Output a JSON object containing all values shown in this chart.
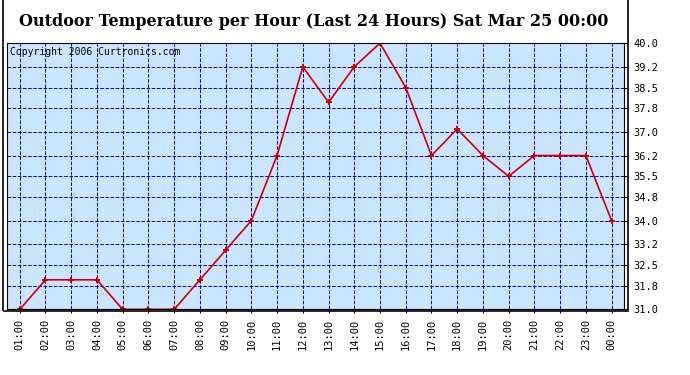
{
  "title": "Outdoor Temperature per Hour (Last 24 Hours) Sat Mar 25 00:00",
  "copyright": "Copyright 2006 Curtronics.com",
  "x_labels": [
    "01:00",
    "02:00",
    "03:00",
    "04:00",
    "05:00",
    "06:00",
    "07:00",
    "08:00",
    "09:00",
    "10:00",
    "11:00",
    "12:00",
    "13:00",
    "14:00",
    "15:00",
    "16:00",
    "17:00",
    "18:00",
    "19:00",
    "20:00",
    "21:00",
    "22:00",
    "23:00",
    "00:00"
  ],
  "y_values": [
    31.0,
    32.0,
    32.0,
    32.0,
    31.0,
    31.0,
    31.0,
    32.0,
    33.0,
    34.0,
    36.2,
    39.2,
    38.0,
    39.2,
    40.0,
    38.5,
    36.2,
    37.1,
    36.2,
    35.5,
    36.2,
    36.2,
    36.2,
    34.0
  ],
  "y_ticks": [
    31.0,
    31.8,
    32.5,
    33.2,
    34.0,
    34.8,
    35.5,
    36.2,
    37.0,
    37.8,
    38.5,
    39.2,
    40.0
  ],
  "ylim": [
    31.0,
    40.0
  ],
  "line_color": "#cc0000",
  "marker_color": "#cc0000",
  "bg_color": "#ffffff",
  "plot_bg_color": "#cce5ff",
  "grid_color": "#0000cc",
  "border_color": "#000000",
  "title_fontsize": 11.5,
  "copyright_fontsize": 7,
  "tick_fontsize": 7.5
}
